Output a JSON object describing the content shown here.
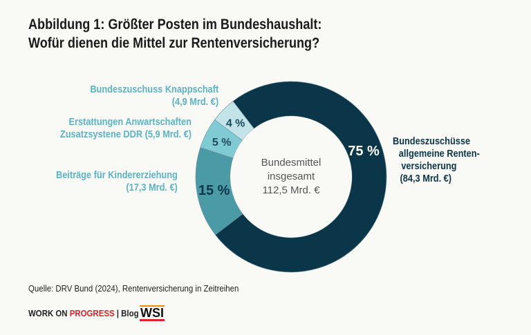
{
  "title": [
    "Abbildung 1: Größter Posten im Bundeshaushalt:",
    "Wofür dienen die Mittel zur Rentenversicherung?"
  ],
  "chart_data": {
    "type": "pie",
    "donut": true,
    "center_label": [
      "Bundesmittel",
      "insgesamt",
      "112,5 Mrd. €"
    ],
    "slices": [
      {
        "label": [
          "Bundeszuschüsse",
          "allgemeine Renten-",
          "versicherung",
          "(84,3 Mrd. €)"
        ],
        "value": 84.3,
        "percent_label": "75 %",
        "color": "#0b3548",
        "pct_color": "#ffffff"
      },
      {
        "label": [
          "Beiträge für Kindererziehung",
          "(17,3 Mrd. €)"
        ],
        "value": 17.3,
        "percent_label": "15 %",
        "color": "#4b9ba7",
        "pct_color": "#0b3548"
      },
      {
        "label": [
          "Erstattungen Anwartschaften",
          "Zusatzsystene DDR (5,9 Mrd. €)"
        ],
        "value": 5.9,
        "percent_label": "5 %",
        "color": "#80cad4",
        "pct_color": "#1d4a5a"
      },
      {
        "label": [
          "Bundeszuschuss Knappschaft",
          "(4,9 Mrd. €)"
        ],
        "value": 4.9,
        "percent_label": "4 %",
        "color": "#c2e4e9",
        "pct_color": "#1d4a5a"
      }
    ],
    "label_color": "#5cb3c6"
  },
  "source": "Quelle: DRV Bund (2024), Rentenversicherung in Zeitreihen",
  "brand": {
    "part1": "WORK ON ",
    "part2": "PROGRESS",
    "sep": " | ",
    "blog": "Blog",
    "logo": "WSI"
  }
}
